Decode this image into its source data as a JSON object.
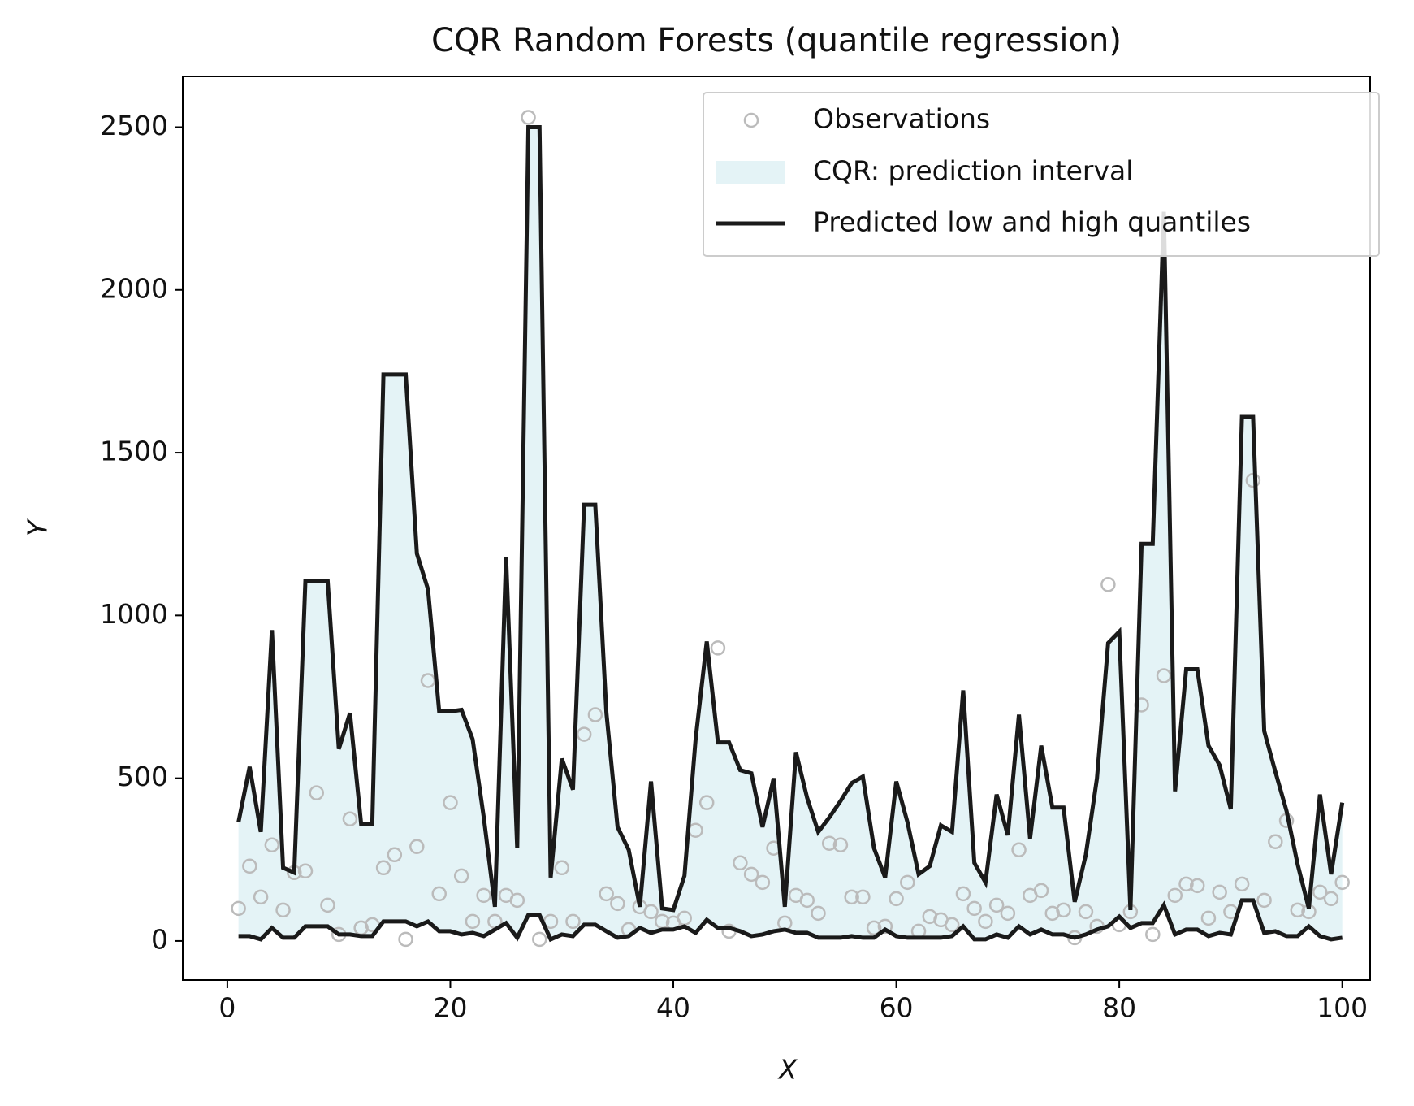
{
  "chart_data": {
    "type": "line",
    "title": "CQR Random Forests (quantile regression)",
    "x_label": "X",
    "y_label": "Y",
    "x": [
      1,
      2,
      3,
      4,
      5,
      6,
      7,
      8,
      9,
      10,
      11,
      12,
      13,
      14,
      15,
      16,
      17,
      18,
      19,
      20,
      21,
      22,
      23,
      24,
      25,
      26,
      27,
      28,
      29,
      30,
      31,
      32,
      33,
      34,
      35,
      36,
      37,
      38,
      39,
      40,
      41,
      42,
      43,
      44,
      45,
      46,
      47,
      48,
      49,
      50,
      51,
      52,
      53,
      54,
      55,
      56,
      57,
      58,
      59,
      60,
      61,
      62,
      63,
      64,
      65,
      66,
      67,
      68,
      69,
      70,
      71,
      72,
      73,
      74,
      75,
      76,
      77,
      78,
      79,
      80,
      81,
      82,
      83,
      84,
      85,
      86,
      87,
      88,
      89,
      90,
      91,
      92,
      93,
      94,
      95,
      96,
      97,
      98,
      99,
      100
    ],
    "series": [
      {
        "name": "Observations",
        "color": "#bbbbbb",
        "values": [
          100,
          230,
          135,
          295,
          95,
          210,
          215,
          455,
          110,
          20,
          375,
          40,
          50,
          225,
          265,
          5,
          290,
          800,
          145,
          425,
          200,
          60,
          140,
          60,
          140,
          125,
          2530,
          5,
          60,
          225,
          60,
          635,
          695,
          145,
          115,
          35,
          105,
          90,
          60,
          55,
          70,
          340,
          425,
          900,
          30,
          240,
          205,
          180,
          285,
          55,
          140,
          125,
          85,
          300,
          295,
          135,
          135,
          40,
          45,
          130,
          180,
          30,
          75,
          65,
          50,
          145,
          100,
          60,
          110,
          85,
          280,
          140,
          155,
          85,
          95,
          10,
          90,
          45,
          1095,
          50,
          90,
          725,
          20,
          815,
          140,
          175,
          170,
          70,
          150,
          90,
          175,
          1415,
          125,
          305,
          370,
          95,
          90,
          150,
          130,
          180
        ]
      },
      {
        "name": "CQR: prediction interval",
        "color": "#e4f3f6",
        "low": [
          15,
          15,
          5,
          40,
          10,
          10,
          45,
          45,
          45,
          20,
          20,
          15,
          15,
          60,
          60,
          60,
          45,
          60,
          30,
          30,
          20,
          25,
          15,
          35,
          55,
          10,
          80,
          80,
          5,
          20,
          15,
          50,
          50,
          30,
          10,
          15,
          40,
          25,
          35,
          35,
          45,
          25,
          65,
          40,
          40,
          30,
          15,
          20,
          30,
          35,
          25,
          25,
          10,
          10,
          10,
          15,
          10,
          10,
          35,
          15,
          10,
          10,
          10,
          10,
          15,
          45,
          5,
          5,
          20,
          10,
          45,
          20,
          35,
          20,
          20,
          10,
          20,
          35,
          45,
          75,
          40,
          55,
          55,
          110,
          20,
          35,
          35,
          15,
          25,
          20,
          125,
          125,
          25,
          30,
          15,
          15,
          45,
          15,
          5,
          10
        ],
        "high": [
          365,
          535,
          335,
          955,
          225,
          210,
          1105,
          1105,
          1105,
          590,
          700,
          360,
          360,
          1740,
          1740,
          1740,
          1190,
          1080,
          705,
          705,
          710,
          620,
          380,
          105,
          1180,
          285,
          2500,
          2500,
          195,
          560,
          465,
          1340,
          1340,
          700,
          350,
          280,
          105,
          490,
          100,
          95,
          200,
          620,
          920,
          610,
          610,
          525,
          515,
          350,
          500,
          105,
          580,
          440,
          335,
          380,
          430,
          485,
          505,
          285,
          195,
          490,
          365,
          205,
          230,
          355,
          335,
          770,
          240,
          180,
          450,
          325,
          695,
          315,
          600,
          410,
          410,
          120,
          265,
          500,
          915,
          950,
          95,
          1220,
          1220,
          2240,
          460,
          835,
          835,
          600,
          540,
          405,
          1610,
          1610,
          645,
          520,
          400,
          235,
          100,
          450,
          205,
          425
        ]
      },
      {
        "name": "Predicted low and high quantiles",
        "color": "#1a1a1a"
      }
    ],
    "xlim": [
      -4,
      102.5
    ],
    "ylim": [
      -120,
      2656
    ],
    "xticks": [
      0,
      20,
      40,
      60,
      80,
      100
    ],
    "yticks": [
      0,
      500,
      1000,
      1500,
      2000,
      2500
    ],
    "legend": "upper right"
  }
}
